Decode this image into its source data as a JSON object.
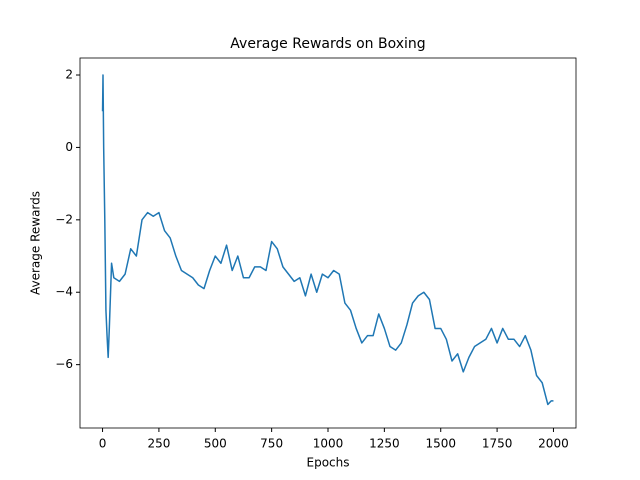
{
  "chart_data": {
    "type": "line",
    "title": "Average Rewards on Boxing",
    "x_label": "Epochs",
    "y_label": "Average Rewards",
    "color": "#1f77b4",
    "x": [
      0,
      2,
      5,
      10,
      15,
      20,
      25,
      30,
      40,
      50,
      75,
      100,
      125,
      150,
      175,
      200,
      225,
      250,
      275,
      300,
      325,
      350,
      375,
      400,
      425,
      450,
      475,
      500,
      525,
      550,
      575,
      600,
      625,
      650,
      675,
      700,
      725,
      750,
      775,
      800,
      825,
      850,
      875,
      900,
      925,
      950,
      975,
      1000,
      1025,
      1050,
      1075,
      1100,
      1125,
      1150,
      1175,
      1200,
      1225,
      1250,
      1275,
      1300,
      1325,
      1350,
      1375,
      1400,
      1425,
      1450,
      1475,
      1500,
      1525,
      1550,
      1575,
      1600,
      1625,
      1650,
      1675,
      1700,
      1725,
      1750,
      1775,
      1800,
      1825,
      1850,
      1875,
      1900,
      1925,
      1950,
      1975,
      1990,
      2000
    ],
    "values": [
      1,
      2,
      0,
      -2,
      -4.5,
      -5.2,
      -5.8,
      -5,
      -3.2,
      -3.6,
      -3.7,
      -3.5,
      -2.8,
      -3.0,
      -2.0,
      -1.8,
      -1.9,
      -1.8,
      -2.3,
      -2.5,
      -3.0,
      -3.4,
      -3.5,
      -3.6,
      -3.8,
      -3.9,
      -3.4,
      -3.0,
      -3.2,
      -2.7,
      -3.4,
      -3.0,
      -3.6,
      -3.6,
      -3.3,
      -3.3,
      -3.4,
      -2.6,
      -2.8,
      -3.3,
      -3.5,
      -3.7,
      -3.6,
      -4.1,
      -3.5,
      -4.0,
      -3.5,
      -3.6,
      -3.4,
      -3.5,
      -4.3,
      -4.5,
      -5.0,
      -5.4,
      -5.2,
      -5.2,
      -4.6,
      -5.0,
      -5.5,
      -5.6,
      -5.4,
      -4.9,
      -4.3,
      -4.1,
      -4.0,
      -4.2,
      -5.0,
      -5.0,
      -5.3,
      -5.9,
      -5.7,
      -6.2,
      -5.8,
      -5.5,
      -5.4,
      -5.3,
      -5.0,
      -5.4,
      -5.0,
      -5.3,
      -5.3,
      -5.5,
      -5.2,
      -5.6,
      -6.3,
      -6.5,
      -7.1,
      -7.0,
      -7.0
    ],
    "xlim": [
      -100,
      2100
    ],
    "ylim": [
      -7.75,
      2.47
    ],
    "xticks": [
      0,
      250,
      500,
      750,
      1000,
      1250,
      1500,
      1750,
      2000
    ],
    "yticks": [
      {
        "value": -6,
        "label": "−6"
      },
      {
        "value": -4,
        "label": "−4"
      },
      {
        "value": -2,
        "label": "−2"
      },
      0,
      2
    ]
  }
}
